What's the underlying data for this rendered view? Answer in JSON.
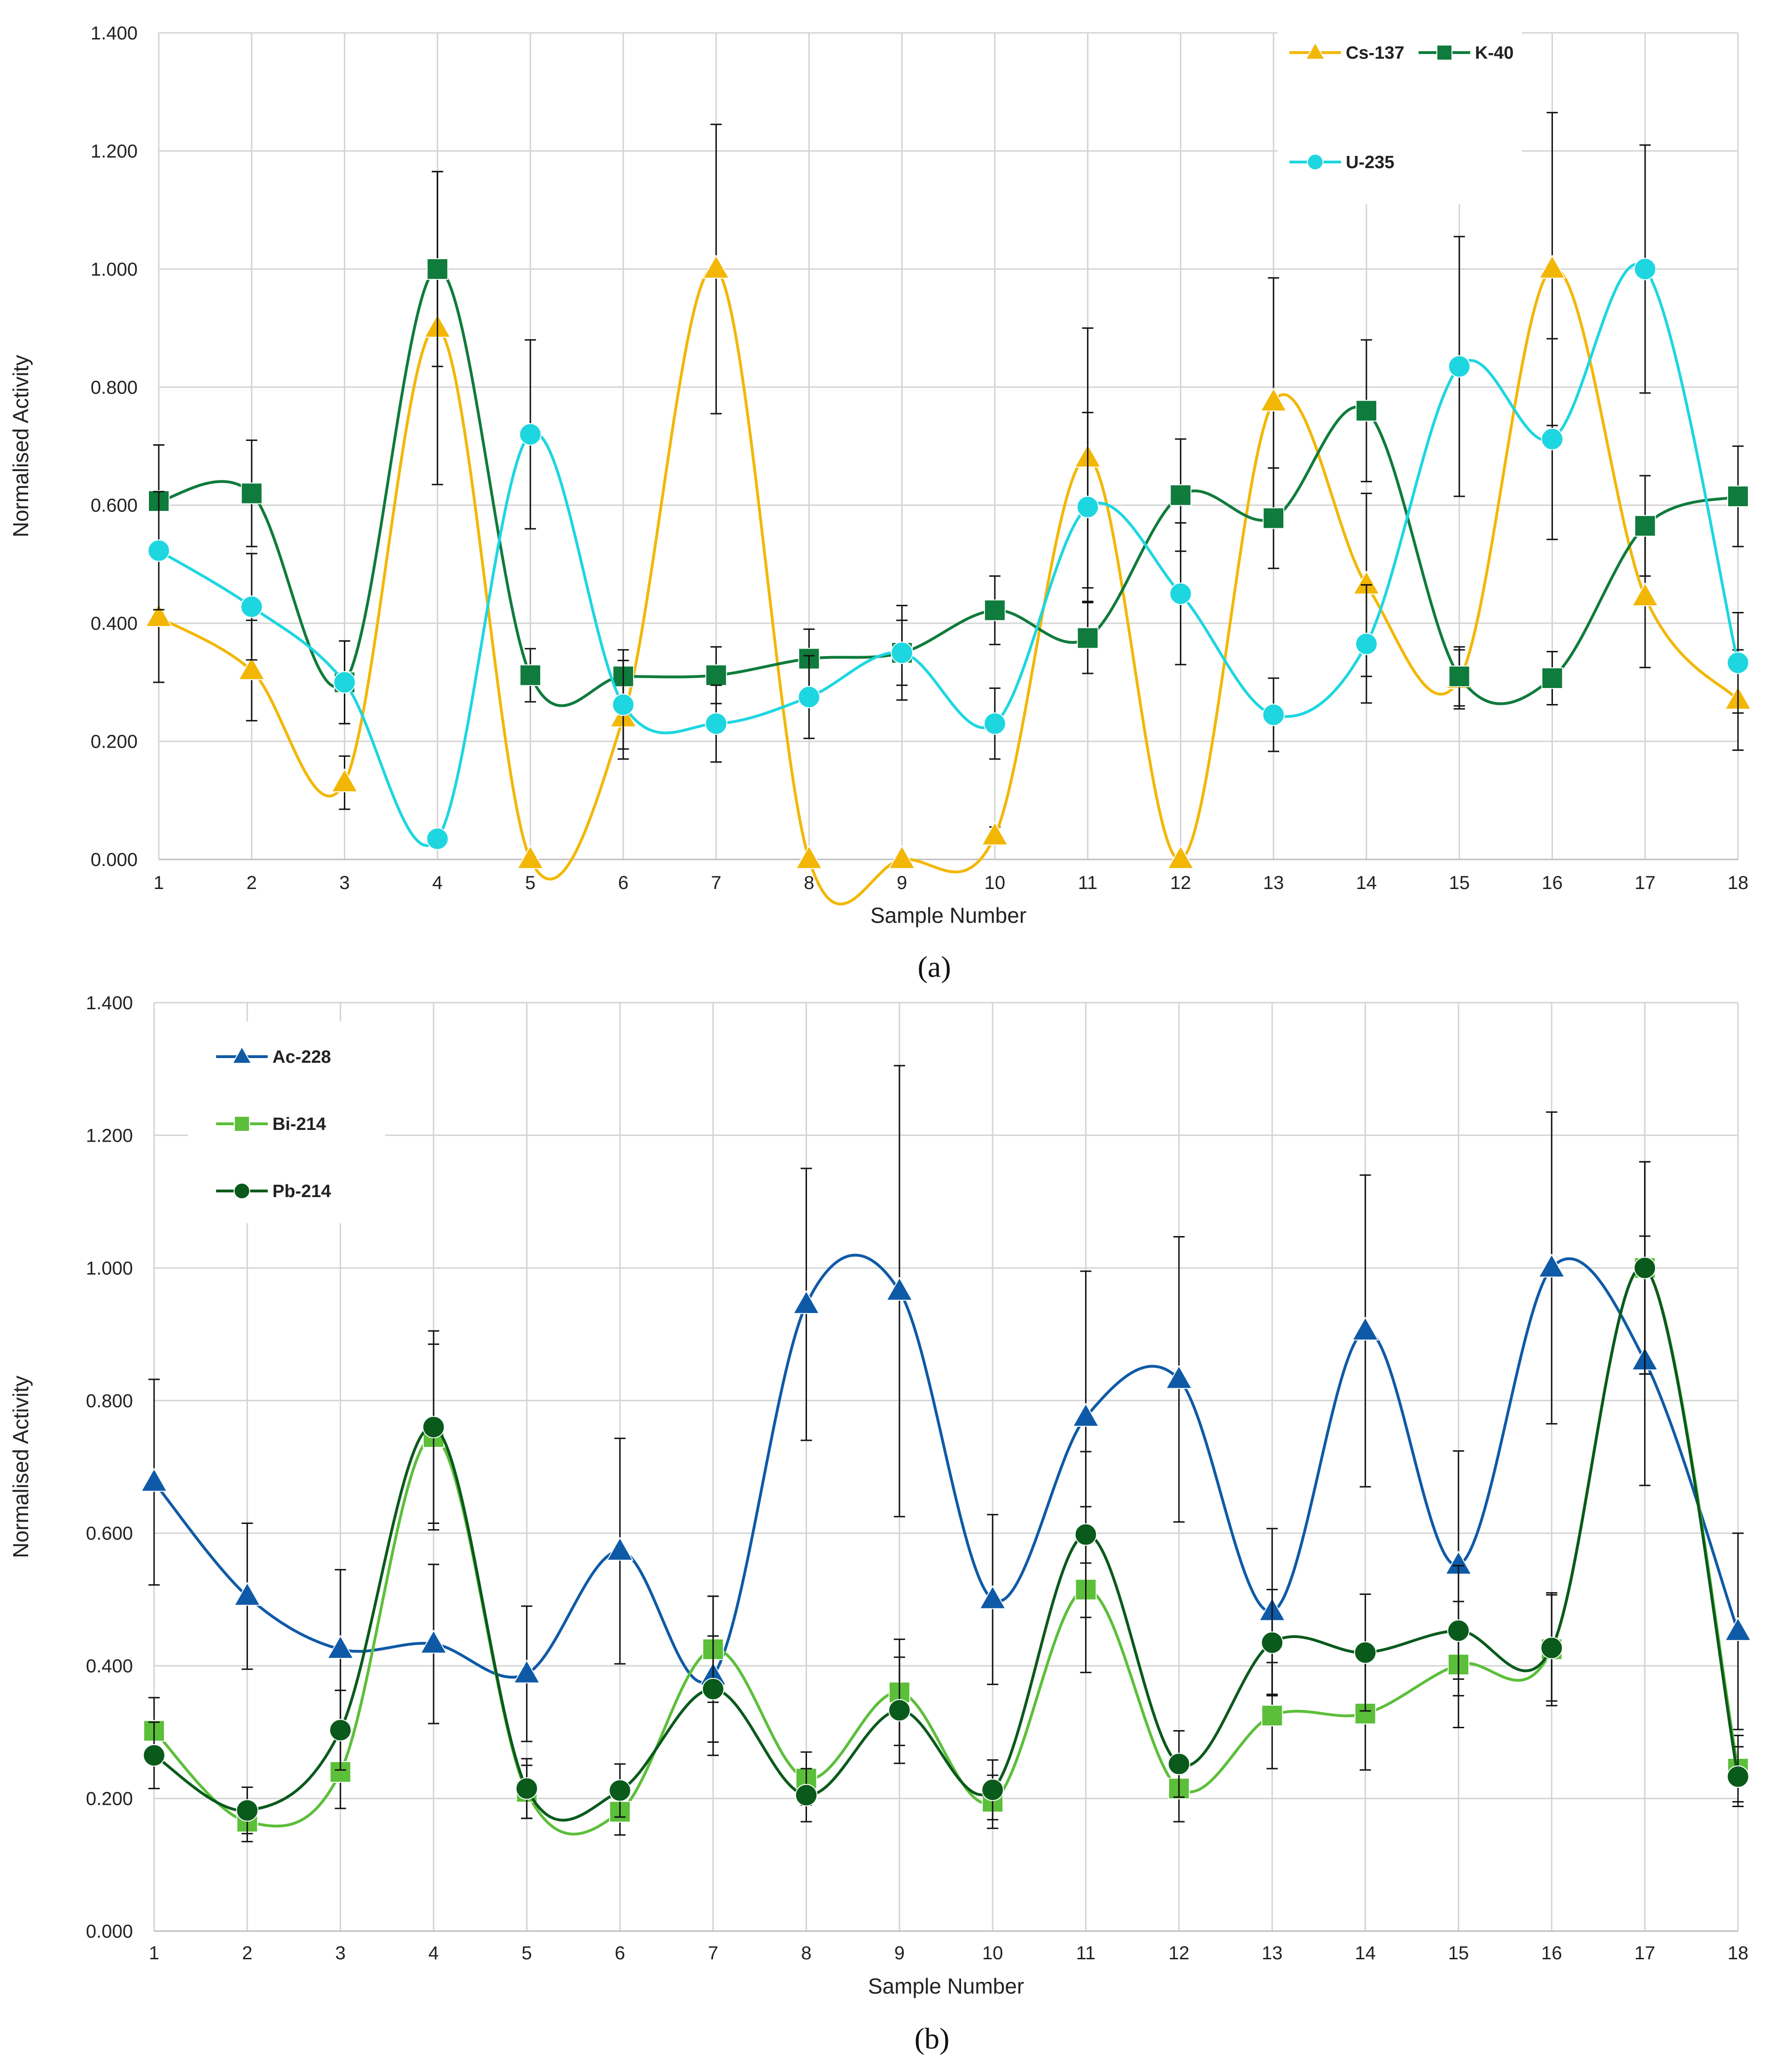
{
  "chart_data": [
    {
      "type": "line",
      "panel": "a",
      "caption": "(a)",
      "title": "",
      "xlabel": "Sample Number",
      "ylabel": "Normalised Activity",
      "x": [
        1,
        2,
        3,
        4,
        5,
        6,
        7,
        8,
        9,
        10,
        11,
        12,
        13,
        14,
        15,
        16,
        17,
        18
      ],
      "xlim": [
        1,
        18
      ],
      "ylim": [
        0,
        1.4
      ],
      "yticks": [
        "0.000",
        "0.200",
        "0.400",
        "0.600",
        "0.800",
        "1.000",
        "1.200",
        "1.400"
      ],
      "grid": true,
      "legend_position": "top-right",
      "series": [
        {
          "name": "Cs-137",
          "color": "#F2B705",
          "marker": "triangle",
          "values": [
            0.41,
            0.32,
            0.13,
            0.9,
            0.0,
            0.24,
            1.0,
            0.0,
            0.0,
            0.04,
            0.68,
            0.0,
            0.775,
            0.465,
            0.305,
            1.0,
            0.445,
            0.27
          ],
          "errors": [
            0.11,
            0.085,
            0.045,
            0.265,
            0.0,
            0.07,
            0.245,
            0.0,
            0.0,
            0.015,
            0.22,
            0.0,
            0.21,
            0.155,
            0.05,
            0.265,
            0.12,
            0.085
          ]
        },
        {
          "name": "K-40",
          "color": "#0F7B3C",
          "marker": "square",
          "values": [
            0.607,
            0.62,
            0.3,
            1.0,
            0.312,
            0.31,
            0.312,
            0.34,
            0.35,
            0.422,
            0.375,
            0.617,
            0.578,
            0.76,
            0.31,
            0.307,
            0.565,
            0.615
          ],
          "errors": [
            0.095,
            0.09,
            0.07,
            0.165,
            0.045,
            0.045,
            0.048,
            0.05,
            0.055,
            0.058,
            0.06,
            0.095,
            0.085,
            0.12,
            0.05,
            0.045,
            0.085,
            0.085
          ]
        },
        {
          "name": "U-235",
          "color": "#1ED6E0",
          "marker": "circle",
          "values": [
            0.523,
            0.428,
            0.3,
            0.035,
            0.72,
            0.262,
            0.23,
            0.275,
            0.35,
            0.23,
            0.597,
            0.45,
            0.245,
            0.365,
            0.835,
            0.712,
            1.0,
            0.333
          ],
          "errors": [
            0.1,
            0.09,
            0.07,
            0.0,
            0.16,
            0.075,
            0.065,
            0.07,
            0.08,
            0.06,
            0.16,
            0.12,
            0.062,
            0.1,
            0.22,
            0.17,
            0.21,
            0.085
          ]
        }
      ]
    },
    {
      "type": "line",
      "panel": "b",
      "caption": "(b)",
      "title": "",
      "xlabel": "Sample Number",
      "ylabel": "Normalised Activity",
      "x": [
        1,
        2,
        3,
        4,
        5,
        6,
        7,
        8,
        9,
        10,
        11,
        12,
        13,
        14,
        15,
        16,
        17,
        18
      ],
      "xlim": [
        1,
        18
      ],
      "ylim": [
        0,
        1.4
      ],
      "yticks": [
        "0.000",
        "0.200",
        "0.400",
        "0.600",
        "0.800",
        "1.000",
        "1.200",
        "1.400"
      ],
      "grid": true,
      "legend_position": "top-left",
      "series": [
        {
          "name": "Ac-228",
          "color": "#0E5AA7",
          "marker": "triangle",
          "values": [
            0.677,
            0.505,
            0.425,
            0.433,
            0.388,
            0.573,
            0.385,
            0.945,
            0.965,
            0.5,
            0.775,
            0.832,
            0.482,
            0.905,
            0.552,
            1.0,
            0.86,
            0.452
          ],
          "errors": [
            0.155,
            0.11,
            0.12,
            0.12,
            0.102,
            0.17,
            0.12,
            0.205,
            0.34,
            0.128,
            0.22,
            0.215,
            0.125,
            0.235,
            0.172,
            0.235,
            0.188,
            0.148
          ]
        },
        {
          "name": "Bi-214",
          "color": "#5CBF3A",
          "marker": "square",
          "values": [
            0.302,
            0.165,
            0.24,
            0.745,
            0.21,
            0.18,
            0.425,
            0.23,
            0.36,
            0.195,
            0.515,
            0.215,
            0.325,
            0.328,
            0.402,
            0.425,
            1.0,
            0.245
          ],
          "errors": [
            0.05,
            0.03,
            0.055,
            0.14,
            0.04,
            0.035,
            0.08,
            0.04,
            0.08,
            0.04,
            0.125,
            0.05,
            0.08,
            0.085,
            0.095,
            0.085,
            0.16,
            0.05
          ]
        },
        {
          "name": "Pb-214",
          "color": "#0A5A1C",
          "marker": "circle",
          "values": [
            0.265,
            0.182,
            0.303,
            0.76,
            0.215,
            0.212,
            0.365,
            0.205,
            0.333,
            0.213,
            0.598,
            0.252,
            0.435,
            0.42,
            0.453,
            0.427,
            1.0,
            0.233
          ],
          "errors": [
            0.05,
            0.035,
            0.06,
            0.145,
            0.045,
            0.04,
            0.08,
            0.04,
            0.08,
            0.045,
            0.125,
            0.05,
            0.08,
            0.088,
            0.098,
            0.08,
            0.16,
            0.045
          ]
        }
      ]
    }
  ]
}
